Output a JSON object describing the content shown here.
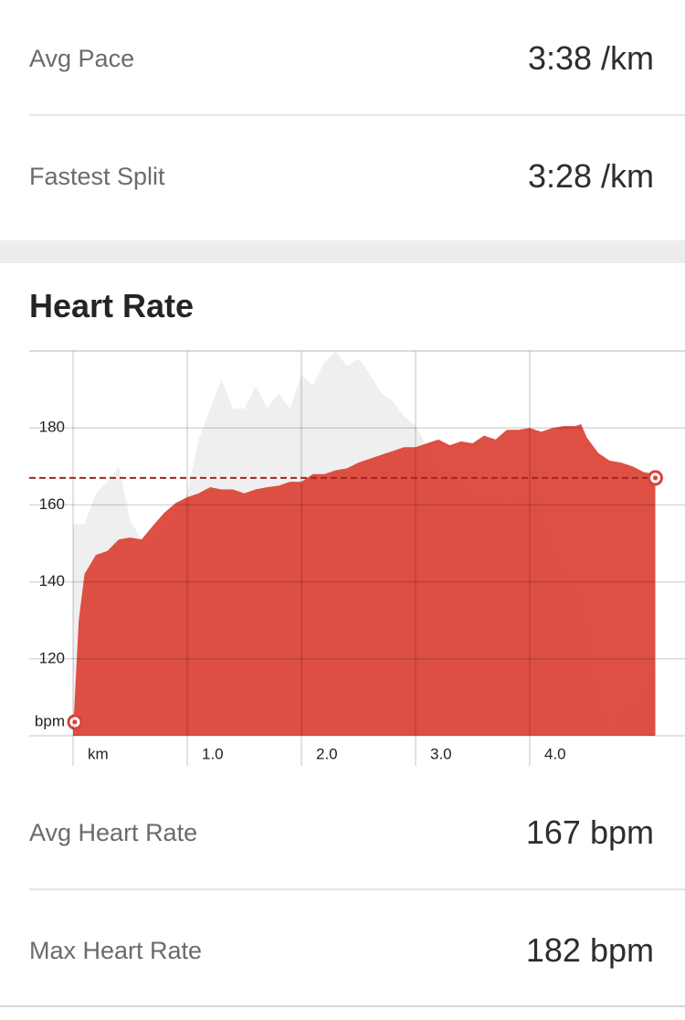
{
  "stats_top": [
    {
      "label": "Avg Pace",
      "value": "3:38 /km"
    },
    {
      "label": "Fastest Split",
      "value": "3:28 /km"
    }
  ],
  "section_title": "Heart Rate",
  "chart_data": {
    "type": "area",
    "x": [
      0,
      0.05,
      0.1,
      0.2,
      0.3,
      0.4,
      0.5,
      0.6,
      0.7,
      0.8,
      0.9,
      1.0,
      1.1,
      1.2,
      1.3,
      1.4,
      1.5,
      1.6,
      1.7,
      1.8,
      1.9,
      2.0,
      2.1,
      2.2,
      2.3,
      2.4,
      2.5,
      2.6,
      2.7,
      2.8,
      2.9,
      3.0,
      3.1,
      3.2,
      3.3,
      3.4,
      3.5,
      3.6,
      3.7,
      3.8,
      3.9,
      4.0,
      4.1,
      4.2,
      4.3,
      4.4,
      4.45,
      4.5,
      4.6,
      4.7,
      4.8,
      4.9,
      5.0,
      5.1
    ],
    "series": [
      {
        "color": "#efefef",
        "values": [
          155,
          155,
          155,
          163,
          166,
          170,
          156,
          151,
          151,
          153,
          158,
          163,
          177,
          185,
          192.5,
          185,
          185,
          191,
          185,
          189,
          185,
          194,
          191,
          197,
          200,
          196,
          198,
          194,
          189,
          187,
          183,
          180.5,
          175,
          170,
          168,
          165,
          163,
          163,
          162,
          158,
          163,
          162,
          162,
          149,
          144,
          141.5,
          136,
          130,
          111,
          101,
          107,
          108,
          111,
          120
        ]
      },
      {
        "color": "#dc4236",
        "values": [
          101,
          130,
          142,
          147,
          148,
          151,
          151.5,
          151,
          154.6,
          158,
          160.5,
          162,
          163,
          164.6,
          164,
          164,
          163,
          164,
          164.6,
          165,
          166,
          166,
          168,
          168,
          169,
          169.5,
          171,
          172,
          173,
          174,
          175,
          175,
          176,
          177,
          175.5,
          176.5,
          176,
          178,
          177,
          179.5,
          179.5,
          180,
          179,
          180,
          180.5,
          180.5,
          181,
          177.5,
          173.5,
          171.5,
          171,
          170,
          168.5,
          168
        ]
      }
    ],
    "average": 167,
    "xlim": [
      -0.384,
      5.36
    ],
    "ylim": [
      100,
      200
    ],
    "xticks": [
      {
        "value": 0,
        "label": "km"
      },
      {
        "value": 1,
        "label": "1.0"
      },
      {
        "value": 2,
        "label": "2.0"
      },
      {
        "value": 3,
        "label": "3.0"
      },
      {
        "value": 4,
        "label": "4.0"
      }
    ],
    "yticks": [
      {
        "value": 100,
        "label": "bpm"
      },
      120,
      140,
      160,
      180
    ],
    "grid": true
  },
  "stats_bottom": [
    {
      "label": "Avg Heart Rate",
      "value": "167 bpm"
    },
    {
      "label": "Max Heart Rate",
      "value": "182 bpm"
    }
  ]
}
